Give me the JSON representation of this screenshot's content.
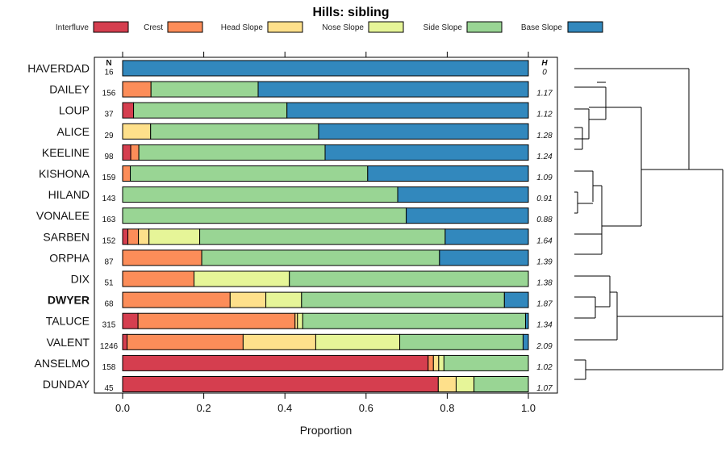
{
  "chart_data": {
    "type": "bar",
    "orientation": "horizontal",
    "stacked": true,
    "title": "Hills: sibling",
    "xlabel": "Proportion",
    "xlim": [
      0,
      1
    ],
    "xticks": [
      "0.0",
      "0.2",
      "0.4",
      "0.6",
      "0.8",
      "1.0"
    ],
    "n_header": "N",
    "h_header": "H",
    "legend_position": "top",
    "highlighted_category": "DWYER",
    "series": [
      {
        "name": "Interfluve",
        "color": "#d53e4f"
      },
      {
        "name": "Crest",
        "color": "#fc8d59"
      },
      {
        "name": "Head Slope",
        "color": "#fee08b"
      },
      {
        "name": "Nose Slope",
        "color": "#e6f598"
      },
      {
        "name": "Side Slope",
        "color": "#99d594"
      },
      {
        "name": "Base Slope",
        "color": "#3288bd"
      }
    ],
    "rows": [
      {
        "name": "HAVERDAD",
        "n": "16",
        "h": "0",
        "values": [
          0,
          0,
          0,
          0,
          0,
          1.0
        ]
      },
      {
        "name": "DAILEY",
        "n": "156",
        "h": "1.17",
        "values": [
          0,
          0.07,
          0,
          0,
          0.264,
          0.666
        ]
      },
      {
        "name": "LOUP",
        "n": "37",
        "h": "1.12",
        "values": [
          0.027,
          0,
          0,
          0,
          0.378,
          0.595
        ]
      },
      {
        "name": "ALICE",
        "n": "29",
        "h": "1.28",
        "values": [
          0,
          0,
          0.069,
          0,
          0.414,
          0.517
        ]
      },
      {
        "name": "KEELINE",
        "n": "98",
        "h": "1.24",
        "values": [
          0.02,
          0.02,
          0,
          0,
          0.459,
          0.501
        ]
      },
      {
        "name": "KISHONA",
        "n": "159",
        "h": "1.09",
        "values": [
          0,
          0.019,
          0,
          0,
          0.585,
          0.396
        ]
      },
      {
        "name": "HILAND",
        "n": "143",
        "h": "0.91",
        "values": [
          0,
          0,
          0,
          0,
          0.678,
          0.322
        ]
      },
      {
        "name": "VONALEE",
        "n": "163",
        "h": "0.88",
        "values": [
          0,
          0,
          0,
          0,
          0.699,
          0.301
        ]
      },
      {
        "name": "SARBEN",
        "n": "152",
        "h": "1.64",
        "values": [
          0.013,
          0.026,
          0.026,
          0.125,
          0.605,
          0.205
        ]
      },
      {
        "name": "ORPHA",
        "n": "87",
        "h": "1.39",
        "values": [
          0,
          0.195,
          0,
          0,
          0.586,
          0.219
        ]
      },
      {
        "name": "DIX",
        "n": "51",
        "h": "1.38",
        "values": [
          0,
          0.176,
          0,
          0.235,
          0.589,
          0
        ]
      },
      {
        "name": "DWYER",
        "n": "68",
        "h": "1.87",
        "values": [
          0,
          0.265,
          0.088,
          0.088,
          0.5,
          0.059
        ]
      },
      {
        "name": "TALUCE",
        "n": "315",
        "h": "1.34",
        "values": [
          0.038,
          0.387,
          0.006,
          0.013,
          0.549,
          0.007
        ]
      },
      {
        "name": "VALENT",
        "n": "1246",
        "h": "2.09",
        "values": [
          0.011,
          0.286,
          0.179,
          0.207,
          0.304,
          0.013
        ]
      },
      {
        "name": "ANSELMO",
        "n": "158",
        "h": "1.02",
        "values": [
          0.753,
          0.013,
          0.013,
          0.013,
          0.208,
          0
        ]
      },
      {
        "name": "DUNDAY",
        "n": "45",
        "h": "1.07",
        "values": [
          0.778,
          0,
          0.044,
          0.044,
          0.134,
          0
        ]
      }
    ],
    "dendrogram_order": [
      "HAVERDAD",
      "DAILEY",
      "LOUP",
      "ALICE",
      "KEELINE",
      "KISHONA",
      "HILAND",
      "VONALEE",
      "SARBEN",
      "ORPHA",
      "DIX",
      "DWYER",
      "TALUCE",
      "VALENT",
      "ANSELMO",
      "DUNDAY"
    ]
  }
}
